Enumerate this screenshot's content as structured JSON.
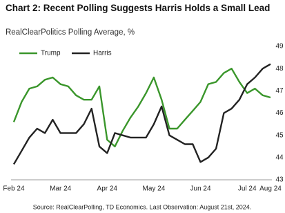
{
  "chart_data": {
    "type": "line",
    "title": "Chart 2: Recent Polling Suggests Harris Holds a Small Lead",
    "subtitle": "RealClearPolitics Polling Average, %",
    "source": "Source: RealClearPolling, TD Economics. Last Observation: August 21st, 2024.",
    "categories": [
      "Feb 24",
      null,
      null,
      null,
      null,
      null,
      "Mar 24",
      null,
      null,
      null,
      null,
      null,
      "Apr 24",
      null,
      null,
      null,
      null,
      null,
      "May 24",
      null,
      null,
      null,
      null,
      null,
      "Jun 24",
      null,
      null,
      null,
      null,
      null,
      "Jul 24",
      null,
      null,
      "Aug 24"
    ],
    "series": [
      {
        "name": "Trump",
        "color": "#3a962b",
        "values": [
          45.6,
          46.5,
          47.1,
          47.2,
          47.5,
          47.6,
          47.3,
          47.2,
          46.8,
          46.6,
          46.6,
          47.2,
          44.8,
          44.5,
          45.2,
          45.8,
          46.3,
          46.9,
          47.6,
          46.6,
          45.3,
          45.3,
          45.7,
          46.1,
          46.5,
          47.3,
          47.4,
          47.8,
          48.0,
          47.4,
          46.9,
          47.1,
          46.8,
          46.7
        ]
      },
      {
        "name": "Harris",
        "color": "#222222",
        "values": [
          43.7,
          44.3,
          44.9,
          45.3,
          45.1,
          45.7,
          45.1,
          45.1,
          45.1,
          45.5,
          46.2,
          44.5,
          44.2,
          45.1,
          45.0,
          44.9,
          44.9,
          44.9,
          45.5,
          46.3,
          45.0,
          44.8,
          44.6,
          44.6,
          43.8,
          44.0,
          44.4,
          46.0,
          46.2,
          46.6,
          47.3,
          47.6,
          48.0,
          48.2
        ]
      }
    ],
    "ylim": [
      43,
      49
    ],
    "yticks": [
      43,
      44,
      45,
      46,
      47,
      48,
      49
    ],
    "grid": false,
    "legend": "top-left"
  }
}
